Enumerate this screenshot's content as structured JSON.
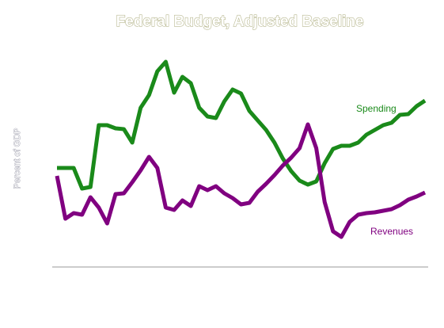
{
  "chart_data": {
    "type": "line",
    "title": "Federal Budget, Adjusted Baseline",
    "y_label": "Percent of GDP",
    "categories": [
      null,
      null,
      null,
      null,
      null,
      null,
      null,
      null,
      null,
      null,
      null,
      null,
      null,
      null,
      null,
      null,
      null,
      null,
      null,
      null,
      null,
      null,
      null,
      null,
      null,
      null,
      null,
      null,
      null,
      null,
      null,
      null,
      null,
      null,
      null,
      null,
      null,
      null,
      null,
      null,
      null,
      null,
      null,
      null,
      null
    ],
    "ylim": [
      0,
      287
    ],
    "series": [
      {
        "name": "Spending",
        "color": "#1a8a1a",
        "values": [
          125,
          125,
          125,
          99,
          101,
          179,
          179,
          175,
          174,
          157,
          201,
          217,
          247,
          259,
          220,
          240,
          232,
          201,
          190,
          188,
          209,
          224,
          219,
          197,
          185,
          173,
          157,
          137,
          121,
          109,
          104,
          108,
          131,
          149,
          153,
          153,
          157,
          167,
          173,
          179,
          182,
          192,
          193,
          203,
          210
        ]
      },
      {
        "name": "Revenues",
        "color": "#800080",
        "values": [
          115,
          61,
          68,
          66,
          88,
          75,
          55,
          92,
          93,
          107,
          122,
          139,
          125,
          75,
          72,
          84,
          77,
          102,
          97,
          102,
          93,
          87,
          79,
          81,
          95,
          105,
          116,
          128,
          138,
          150,
          180,
          150,
          82,
          45,
          38,
          57,
          66,
          68,
          69,
          71,
          73,
          78,
          85,
          89,
          94
        ]
      }
    ]
  }
}
